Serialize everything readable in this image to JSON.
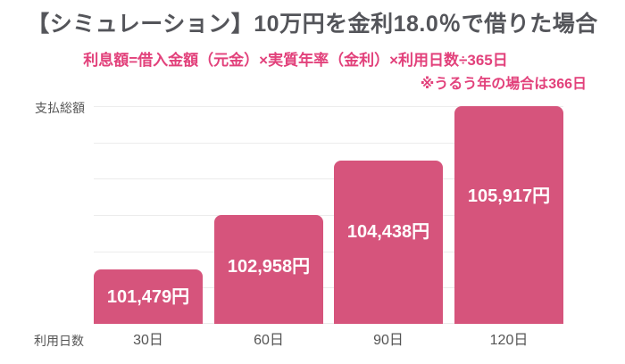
{
  "header": {
    "title": "【シミュレーション】10万円を金利18.0％で借りた場合",
    "formula": "利息額=借入金額（元金）×実質年率（金利）×利用日数÷365日",
    "note": "※うるう年の場合は366日"
  },
  "colors": {
    "bar_fill": "#d6547c",
    "accent_text_pink": "#e2417b",
    "title_text": "#54555a",
    "axis_text": "#555555",
    "gridline": "#ececec",
    "bar_value_text": "#ffffff",
    "background": "#ffffff"
  },
  "chart_data": {
    "type": "bar",
    "title": "【シミュレーション】10万円を金利18.0％で借りた場合",
    "categories": [
      "30日",
      "60日",
      "90日",
      "120日"
    ],
    "values": [
      101479,
      102958,
      104438,
      105917
    ],
    "value_labels": [
      "101,479円",
      "102,958円",
      "104,438円",
      "105,917円"
    ],
    "xlabel": "利用日数",
    "ylabel": "支払総額",
    "ylim": [
      100000,
      106000
    ],
    "grid": true,
    "gridline_count": 7,
    "legend": "none"
  }
}
